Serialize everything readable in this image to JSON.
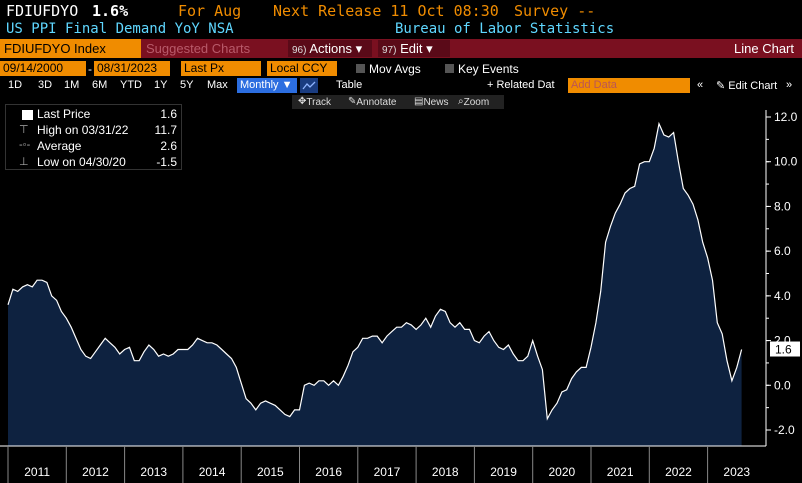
{
  "header": {
    "ticker": "FDIUFDYO",
    "value": "1.6%",
    "for_label": "For Aug",
    "next_release": "Next Release 11 Oct 08:30",
    "survey": "Survey --",
    "title": "US PPI Final Demand YoY NSA",
    "source": "Bureau of Labor Statistics"
  },
  "toolbar": {
    "security": "FDIUFDYO Index",
    "suggested": "Suggested Charts",
    "actions_num": "96)",
    "actions_label": "Actions ▾",
    "edit_num": "97)",
    "edit_label": "Edit ▾",
    "chart_type": "Line Chart"
  },
  "controls": {
    "start_date": "09/14/2000",
    "end_date": "08/31/2023",
    "field": "Last Px",
    "currency": "Local CCY",
    "mov_avgs": "Mov Avgs",
    "key_events": "Key Events"
  },
  "periods": [
    "1D",
    "3D",
    "1M",
    "6M",
    "YTD",
    "1Y",
    "5Y",
    "Max"
  ],
  "frequency": "Monthly ▼",
  "table_label": "Table",
  "related": "+ Related Dat",
  "add_data_placeholder": "Add Data",
  "edit_chart": "Edit Chart",
  "chart_tools": [
    "Track",
    "Annotate",
    "News",
    "Zoom"
  ],
  "legend": [
    {
      "label": "Last Price",
      "value": "1.6"
    },
    {
      "label": "High on 03/31/22",
      "value": "11.7"
    },
    {
      "label": "Average",
      "value": "2.6"
    },
    {
      "label": "Low on 04/30/20",
      "value": "-1.5"
    }
  ],
  "colors": {
    "area_fill": "#0e2240",
    "line": "#ffffff",
    "orange": "#f08c00",
    "maroon": "#7a1020",
    "cyan": "#5fd7ff"
  },
  "chart_data": {
    "type": "area",
    "title": "US PPI Final Demand YoY NSA",
    "xlabel": "",
    "ylabel": "",
    "ylim": [
      -2.5,
      12.5
    ],
    "yticks": [
      "12.0",
      "10.0",
      "8.0",
      "6.0",
      "4.0",
      "2.0",
      "0.0",
      "-2.0"
    ],
    "xticks": [
      "2011",
      "2012",
      "2013",
      "2014",
      "2015",
      "2016",
      "2017",
      "2018",
      "2019",
      "2020",
      "2021",
      "2022",
      "2023"
    ],
    "last_value_label": "1.6",
    "x": [
      "2011-01",
      "2011-02",
      "2011-03",
      "2011-04",
      "2011-05",
      "2011-06",
      "2011-07",
      "2011-08",
      "2011-09",
      "2011-10",
      "2011-11",
      "2011-12",
      "2012-01",
      "2012-02",
      "2012-03",
      "2012-04",
      "2012-05",
      "2012-06",
      "2012-07",
      "2012-08",
      "2012-09",
      "2012-10",
      "2012-11",
      "2012-12",
      "2013-01",
      "2013-02",
      "2013-03",
      "2013-04",
      "2013-05",
      "2013-06",
      "2013-07",
      "2013-08",
      "2013-09",
      "2013-10",
      "2013-11",
      "2013-12",
      "2014-01",
      "2014-02",
      "2014-03",
      "2014-04",
      "2014-05",
      "2014-06",
      "2014-07",
      "2014-08",
      "2014-09",
      "2014-10",
      "2014-11",
      "2014-12",
      "2015-01",
      "2015-02",
      "2015-03",
      "2015-04",
      "2015-05",
      "2015-06",
      "2015-07",
      "2015-08",
      "2015-09",
      "2015-10",
      "2015-11",
      "2015-12",
      "2016-01",
      "2016-02",
      "2016-03",
      "2016-04",
      "2016-05",
      "2016-06",
      "2016-07",
      "2016-08",
      "2016-09",
      "2016-10",
      "2016-11",
      "2016-12",
      "2017-01",
      "2017-02",
      "2017-03",
      "2017-04",
      "2017-05",
      "2017-06",
      "2017-07",
      "2017-08",
      "2017-09",
      "2017-10",
      "2017-11",
      "2017-12",
      "2018-01",
      "2018-02",
      "2018-03",
      "2018-04",
      "2018-05",
      "2018-06",
      "2018-07",
      "2018-08",
      "2018-09",
      "2018-10",
      "2018-11",
      "2018-12",
      "2019-01",
      "2019-02",
      "2019-03",
      "2019-04",
      "2019-05",
      "2019-06",
      "2019-07",
      "2019-08",
      "2019-09",
      "2019-10",
      "2019-11",
      "2019-12",
      "2020-01",
      "2020-02",
      "2020-03",
      "2020-04",
      "2020-05",
      "2020-06",
      "2020-07",
      "2020-08",
      "2020-09",
      "2020-10",
      "2020-11",
      "2020-12",
      "2021-01",
      "2021-02",
      "2021-03",
      "2021-04",
      "2021-05",
      "2021-06",
      "2021-07",
      "2021-08",
      "2021-09",
      "2021-10",
      "2021-11",
      "2021-12",
      "2022-01",
      "2022-02",
      "2022-03",
      "2022-04",
      "2022-05",
      "2022-06",
      "2022-07",
      "2022-08",
      "2022-09",
      "2022-10",
      "2022-11",
      "2022-12",
      "2023-01",
      "2023-02",
      "2023-03",
      "2023-04",
      "2023-05",
      "2023-06",
      "2023-07",
      "2023-08"
    ],
    "values": [
      3.6,
      4.3,
      4.2,
      4.4,
      4.5,
      4.4,
      4.7,
      4.7,
      4.6,
      4.0,
      3.8,
      3.3,
      3.0,
      2.6,
      2.1,
      1.6,
      1.3,
      1.2,
      1.5,
      1.8,
      2.1,
      1.9,
      1.7,
      1.4,
      1.6,
      1.7,
      1.1,
      1.1,
      1.5,
      1.8,
      1.6,
      1.3,
      1.4,
      1.3,
      1.4,
      1.6,
      1.6,
      1.6,
      1.8,
      2.1,
      2.0,
      1.9,
      1.9,
      1.8,
      1.6,
      1.4,
      1.2,
      0.8,
      0.1,
      -0.6,
      -0.8,
      -1.1,
      -0.8,
      -0.7,
      -0.8,
      -0.9,
      -1.1,
      -1.3,
      -1.4,
      -1.1,
      -1.1,
      0.0,
      0.1,
      0.0,
      0.2,
      0.2,
      0.0,
      0.2,
      0.0,
      0.4,
      0.9,
      1.5,
      1.7,
      2.1,
      2.1,
      2.2,
      2.2,
      1.9,
      2.2,
      2.4,
      2.6,
      2.6,
      2.8,
      2.7,
      2.5,
      2.7,
      3.0,
      2.6,
      3.1,
      3.4,
      3.3,
      2.8,
      2.6,
      2.8,
      2.5,
      2.5,
      2.0,
      1.9,
      2.2,
      2.4,
      2.0,
      1.7,
      1.6,
      1.8,
      1.4,
      1.1,
      1.1,
      1.3,
      2.0,
      1.3,
      0.7,
      -1.5,
      -1.1,
      -0.8,
      -0.3,
      -0.2,
      0.3,
      0.6,
      0.8,
      0.8,
      1.7,
      2.8,
      4.2,
      6.4,
      7.1,
      7.7,
      8.1,
      8.6,
      8.8,
      8.9,
      9.9,
      10.0,
      10.0,
      10.6,
      11.7,
      11.2,
      11.1,
      11.3,
      10.0,
      8.8,
      8.5,
      8.1,
      7.4,
      6.4,
      5.7,
      4.7,
      2.8,
      2.3,
      1.1,
      0.2,
      0.8,
      1.6
    ]
  }
}
